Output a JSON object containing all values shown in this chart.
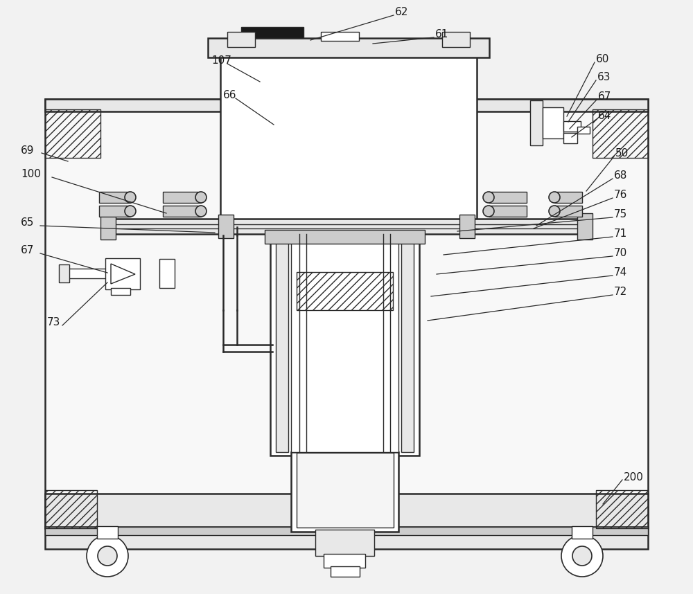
{
  "bg_color": "#f2f2f2",
  "lc": "#2a2a2a",
  "lw_main": 1.8,
  "lw_thin": 1.0,
  "lw_leader": 0.9,
  "fs": 11,
  "label_color": "#1a1a1a",
  "white": "#ffffff",
  "light": "#e8e8e8",
  "mid": "#cccccc",
  "dark": "#1a1a1a"
}
